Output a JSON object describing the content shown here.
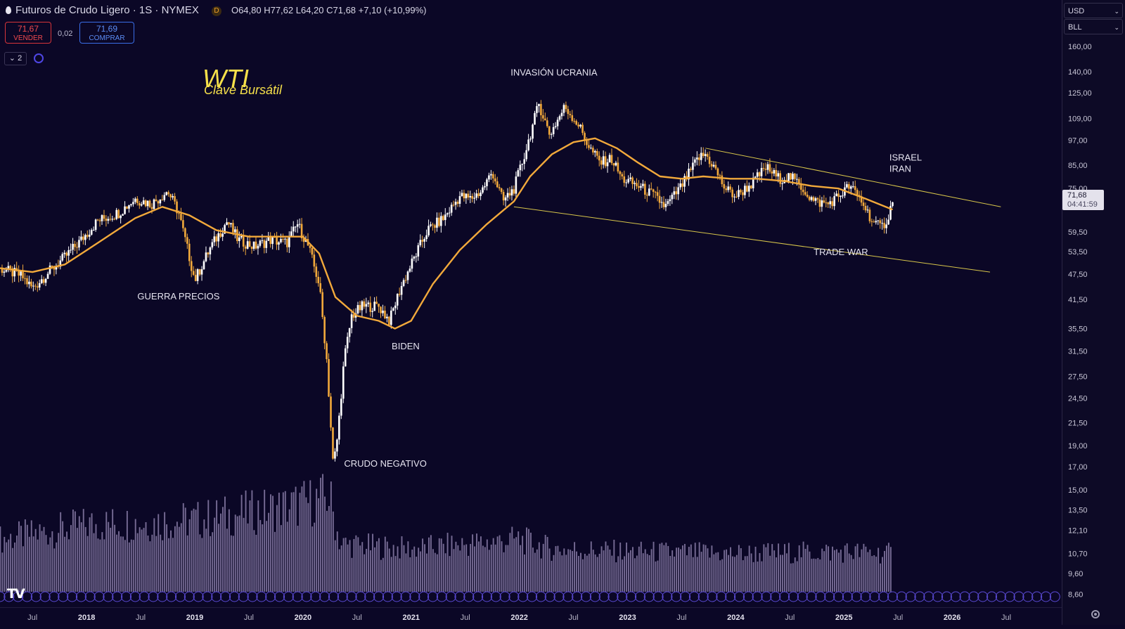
{
  "header": {
    "symbol_title": "Futuros de Crudo Ligero · 1S · NYMEX",
    "badge": "D",
    "ohlc": "O64,80 H77,62 L64,20 C71,68 +7,10 (+10,99%)"
  },
  "trade": {
    "sell_price": "71,67",
    "sell_label": "VENDER",
    "spread": "0,02",
    "buy_price": "71,69",
    "buy_label": "COMPRAR"
  },
  "indicators": {
    "count": "2"
  },
  "axis_panel": {
    "currency": "USD",
    "unit": "BLL"
  },
  "last_price": {
    "value": "71,68",
    "countdown": "04:41:59"
  },
  "logo_text": "TV",
  "colors": {
    "background": "#0b0726",
    "candle": "#f2a93b",
    "candle_up": "#ffffff",
    "moving_average": "#f2a93b",
    "trendline": "#d8c64a",
    "volume": "#8a7da8",
    "title": "#f6e04a"
  },
  "chart_data": {
    "type": "candlestick",
    "title": "WTI",
    "subtitle": "Clave Bursátil",
    "y_scale": "log",
    "y_ticks": [
      {
        "v": 160,
        "label": "160,00"
      },
      {
        "v": 140,
        "label": "140,00"
      },
      {
        "v": 125,
        "label": "125,00"
      },
      {
        "v": 109,
        "label": "109,00"
      },
      {
        "v": 97,
        "label": "97,00"
      },
      {
        "v": 85,
        "label": "85,00"
      },
      {
        "v": 75,
        "label": "75,00"
      },
      {
        "v": 59.5,
        "label": "59,50"
      },
      {
        "v": 53.5,
        "label": "53,50"
      },
      {
        "v": 47.5,
        "label": "47,50"
      },
      {
        "v": 41.5,
        "label": "41,50"
      },
      {
        "v": 35.5,
        "label": "35,50"
      },
      {
        "v": 31.5,
        "label": "31,50"
      },
      {
        "v": 27.5,
        "label": "27,50"
      },
      {
        "v": 24.5,
        "label": "24,50"
      },
      {
        "v": 21.5,
        "label": "21,50"
      },
      {
        "v": 19,
        "label": "19,00"
      },
      {
        "v": 17,
        "label": "17,00"
      },
      {
        "v": 15,
        "label": "15,00"
      },
      {
        "v": 13.5,
        "label": "13,50"
      },
      {
        "v": 12.1,
        "label": "12,10"
      },
      {
        "v": 10.7,
        "label": "10,70"
      },
      {
        "v": 9.6,
        "label": "9,60"
      },
      {
        "v": 8.6,
        "label": "8,60"
      }
    ],
    "x_ticks": [
      {
        "t": 2017.5,
        "label": "Jul"
      },
      {
        "t": 2018,
        "label": "2018"
      },
      {
        "t": 2018.5,
        "label": "Jul"
      },
      {
        "t": 2019,
        "label": "2019"
      },
      {
        "t": 2019.5,
        "label": "Jul"
      },
      {
        "t": 2020,
        "label": "2020"
      },
      {
        "t": 2020.5,
        "label": "Jul"
      },
      {
        "t": 2021,
        "label": "2021"
      },
      {
        "t": 2021.5,
        "label": "Jul"
      },
      {
        "t": 2022,
        "label": "2022"
      },
      {
        "t": 2022.5,
        "label": "Jul"
      },
      {
        "t": 2023,
        "label": "2023"
      },
      {
        "t": 2023.5,
        "label": "Jul"
      },
      {
        "t": 2024,
        "label": "2024"
      },
      {
        "t": 2024.5,
        "label": "Jul"
      },
      {
        "t": 2025,
        "label": "2025"
      },
      {
        "t": 2025.5,
        "label": "Jul"
      },
      {
        "t": 2026,
        "label": "2026"
      },
      {
        "t": 2026.5,
        "label": "Jul"
      }
    ],
    "x_range": [
      2017.2,
      2027.0
    ],
    "y_range": [
      8.3,
      170
    ],
    "price_path": [
      [
        2017.2,
        49
      ],
      [
        2017.4,
        47
      ],
      [
        2017.5,
        44
      ],
      [
        2017.65,
        48
      ],
      [
        2017.8,
        52
      ],
      [
        2017.95,
        57
      ],
      [
        2018.1,
        63
      ],
      [
        2018.3,
        66
      ],
      [
        2018.45,
        71
      ],
      [
        2018.6,
        69
      ],
      [
        2018.75,
        74
      ],
      [
        2018.85,
        66
      ],
      [
        2018.95,
        52
      ],
      [
        2019.0,
        46
      ],
      [
        2019.15,
        55
      ],
      [
        2019.3,
        63
      ],
      [
        2019.4,
        57
      ],
      [
        2019.55,
        55
      ],
      [
        2019.7,
        57
      ],
      [
        2019.85,
        56
      ],
      [
        2019.95,
        62
      ],
      [
        2020.05,
        55
      ],
      [
        2020.15,
        45
      ],
      [
        2020.22,
        30
      ],
      [
        2020.28,
        17
      ],
      [
        2020.32,
        20
      ],
      [
        2020.38,
        30
      ],
      [
        2020.45,
        38
      ],
      [
        2020.55,
        40
      ],
      [
        2020.7,
        40
      ],
      [
        2020.8,
        37
      ],
      [
        2020.9,
        44
      ],
      [
        2021.0,
        50
      ],
      [
        2021.15,
        60
      ],
      [
        2021.3,
        64
      ],
      [
        2021.45,
        72
      ],
      [
        2021.55,
        71
      ],
      [
        2021.65,
        74
      ],
      [
        2021.75,
        82
      ],
      [
        2021.85,
        70
      ],
      [
        2021.95,
        75
      ],
      [
        2022.05,
        90
      ],
      [
        2022.18,
        118
      ],
      [
        2022.28,
        100
      ],
      [
        2022.42,
        116
      ],
      [
        2022.55,
        105
      ],
      [
        2022.65,
        93
      ],
      [
        2022.75,
        86
      ],
      [
        2022.85,
        88
      ],
      [
        2022.95,
        79
      ],
      [
        2023.1,
        76
      ],
      [
        2023.25,
        72
      ],
      [
        2023.35,
        68
      ],
      [
        2023.5,
        76
      ],
      [
        2023.65,
        88
      ],
      [
        2023.72,
        90
      ],
      [
        2023.8,
        84
      ],
      [
        2023.9,
        75
      ],
      [
        2024.0,
        72
      ],
      [
        2024.15,
        77
      ],
      [
        2024.28,
        84
      ],
      [
        2024.4,
        79
      ],
      [
        2024.5,
        80
      ],
      [
        2024.6,
        76
      ],
      [
        2024.72,
        70
      ],
      [
        2024.85,
        69
      ],
      [
        2024.95,
        72
      ],
      [
        2025.05,
        76
      ],
      [
        2025.15,
        71
      ],
      [
        2025.28,
        62
      ],
      [
        2025.35,
        61
      ],
      [
        2025.42,
        65
      ],
      [
        2025.45,
        71.68
      ]
    ],
    "moving_average": [
      [
        2017.2,
        49
      ],
      [
        2017.5,
        48
      ],
      [
        2017.8,
        50
      ],
      [
        2018.1,
        56
      ],
      [
        2018.45,
        64
      ],
      [
        2018.7,
        68
      ],
      [
        2018.95,
        65
      ],
      [
        2019.2,
        60
      ],
      [
        2019.5,
        58
      ],
      [
        2019.8,
        58
      ],
      [
        2020.0,
        58
      ],
      [
        2020.15,
        53
      ],
      [
        2020.3,
        42
      ],
      [
        2020.5,
        38
      ],
      [
        2020.7,
        37
      ],
      [
        2020.85,
        35.5
      ],
      [
        2021.0,
        37
      ],
      [
        2021.2,
        45
      ],
      [
        2021.45,
        54
      ],
      [
        2021.7,
        62
      ],
      [
        2021.95,
        70
      ],
      [
        2022.1,
        80
      ],
      [
        2022.3,
        90
      ],
      [
        2022.5,
        96
      ],
      [
        2022.7,
        98
      ],
      [
        2022.9,
        93
      ],
      [
        2023.1,
        86
      ],
      [
        2023.3,
        80
      ],
      [
        2023.5,
        79
      ],
      [
        2023.7,
        80
      ],
      [
        2023.95,
        79
      ],
      [
        2024.2,
        79
      ],
      [
        2024.45,
        78
      ],
      [
        2024.7,
        76
      ],
      [
        2024.95,
        75
      ],
      [
        2025.2,
        71
      ],
      [
        2025.45,
        67
      ]
    ],
    "trendlines": [
      {
        "p1": [
          2023.72,
          93
        ],
        "p2": [
          2026.45,
          68
        ]
      },
      {
        "p1": [
          2021.95,
          68
        ],
        "p2": [
          2026.35,
          48
        ]
      }
    ],
    "annotations": [
      {
        "text": "INVASIÓN UCRANIA",
        "t": 2021.92,
        "v": 137
      },
      {
        "text": "GUERRA PRECIOS",
        "t": 2018.47,
        "v": 41.5
      },
      {
        "text": "BIDEN",
        "t": 2020.82,
        "v": 31.8
      },
      {
        "text": "CRUDO NEGATIVO",
        "t": 2020.38,
        "v": 17
      },
      {
        "text": "ISRAEL",
        "t": 2025.42,
        "v": 87
      },
      {
        "text": "IRAN",
        "t": 2025.42,
        "v": 82
      },
      {
        "text": "TRADE WAR",
        "t": 2024.72,
        "v": 52.5
      }
    ],
    "volume_profile": [
      [
        2017.2,
        0.55
      ],
      [
        2018.0,
        0.7
      ],
      [
        2019.0,
        0.75
      ],
      [
        2019.9,
        0.9
      ],
      [
        2020.25,
        1.0
      ],
      [
        2020.35,
        0.5
      ],
      [
        2021.0,
        0.45
      ],
      [
        2022.0,
        0.55
      ],
      [
        2022.3,
        0.45
      ],
      [
        2023.0,
        0.42
      ],
      [
        2024.0,
        0.4
      ],
      [
        2025.0,
        0.42
      ],
      [
        2025.45,
        0.4
      ]
    ],
    "candles_to": 2025.45
  }
}
